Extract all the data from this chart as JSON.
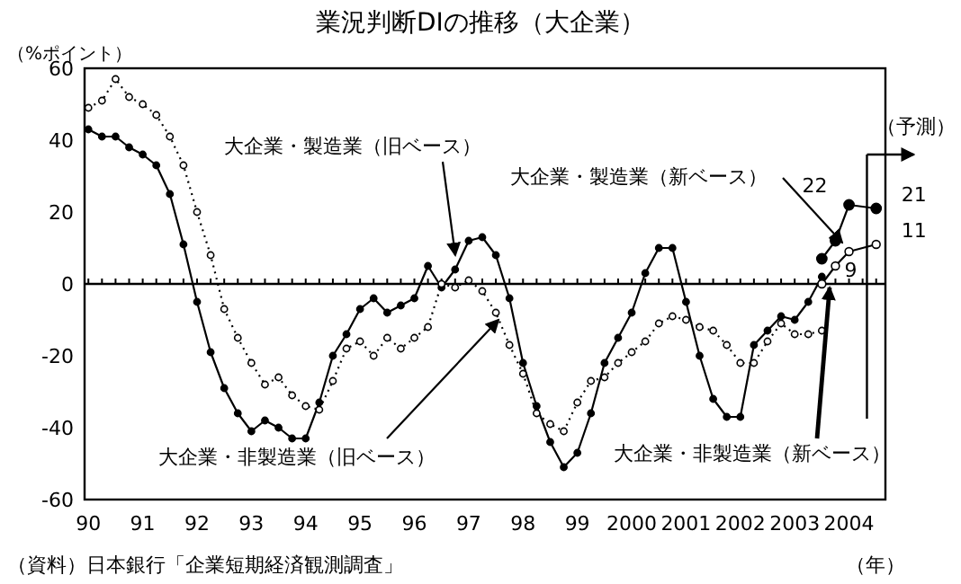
{
  "chart_data": {
    "type": "line",
    "title": "業況判断DIの推移（大企業）",
    "ylabel": "（%ポイント）",
    "xlabel": "（年）",
    "annotations": [
      "（資料）日本銀行「企業短期経済観測調査」"
    ],
    "xlim": [
      1989.93,
      2004.67
    ],
    "ylim": [
      -60,
      60
    ],
    "xticks": [
      {
        "value": 1990,
        "label": "90"
      },
      {
        "value": 1991,
        "label": "91"
      },
      {
        "value": 1992,
        "label": "92"
      },
      {
        "value": 1993,
        "label": "93"
      },
      {
        "value": 1994,
        "label": "94"
      },
      {
        "value": 1995,
        "label": "95"
      },
      {
        "value": 1996,
        "label": "96"
      },
      {
        "value": 1997,
        "label": "97"
      },
      {
        "value": 1998,
        "label": "98"
      },
      {
        "value": 1999,
        "label": "99"
      },
      2000,
      2001,
      2002,
      2003,
      2004
    ],
    "yticks": [
      60,
      40,
      20,
      0,
      -20,
      -40,
      -60
    ],
    "legend": false,
    "grid": false,
    "ref_lines": [
      {
        "axis": "y",
        "value": 0
      },
      {
        "axis": "x",
        "value": 2004.33,
        "label": "（予測）"
      }
    ],
    "series": [
      {
        "name": "大企業・製造業（旧ベース）",
        "color": "#000000",
        "marker": "circle",
        "line_style": "solid",
        "x": [
          1990,
          1990.25,
          1990.5,
          1990.75,
          1991,
          1991.25,
          1991.5,
          1991.75,
          1992,
          1992.25,
          1992.5,
          1992.75,
          1993,
          1993.25,
          1993.5,
          1993.75,
          1994,
          1994.25,
          1994.5,
          1994.75,
          1995,
          1995.25,
          1995.5,
          1995.75,
          1996,
          1996.25,
          1996.5,
          1996.75,
          1997,
          1997.25,
          1997.5,
          1997.75,
          1998,
          1998.25,
          1998.5,
          1998.75,
          1999,
          1999.25,
          1999.5,
          1999.75,
          2000,
          2000.25,
          2000.5,
          2000.75,
          2001,
          2001.25,
          2001.5,
          2001.75,
          2002,
          2002.25,
          2002.5,
          2002.75,
          2003,
          2003.25,
          2003.5
        ],
        "values": [
          43,
          41,
          41,
          38,
          36,
          33,
          25,
          11,
          -5,
          -19,
          -29,
          -36,
          -41,
          -38,
          -40,
          -43,
          -43,
          -33,
          -20,
          -14,
          -7,
          -4,
          -8,
          -6,
          -4,
          5,
          -1,
          4,
          12,
          13,
          8,
          -4,
          -22,
          -34,
          -44,
          -51,
          -47,
          -36,
          -22,
          -15,
          -8,
          3,
          10,
          10,
          -5,
          -20,
          -32,
          -37,
          -37,
          -17,
          -13,
          -9,
          -10,
          -5,
          2
        ]
      },
      {
        "name": "大企業・非製造業（旧ベース）",
        "color": "#000000",
        "marker": "circle",
        "line_style": "dotted",
        "x": [
          1990,
          1990.25,
          1990.5,
          1990.75,
          1991,
          1991.25,
          1991.5,
          1991.75,
          1992,
          1992.25,
          1992.5,
          1992.75,
          1993,
          1993.25,
          1993.5,
          1993.75,
          1994,
          1994.25,
          1994.5,
          1994.75,
          1995,
          1995.25,
          1995.5,
          1995.75,
          1996,
          1996.25,
          1996.5,
          1996.75,
          1997,
          1997.25,
          1997.5,
          1997.75,
          1998,
          1998.25,
          1998.5,
          1998.75,
          1999,
          1999.25,
          1999.5,
          1999.75,
          2000,
          2000.25,
          2000.5,
          2000.75,
          2001,
          2001.25,
          2001.5,
          2001.75,
          2002,
          2002.25,
          2002.5,
          2002.75,
          2003,
          2003.25,
          2003.5
        ],
        "values": [
          49,
          51,
          57,
          52,
          50,
          47,
          41,
          33,
          20,
          8,
          -7,
          -15,
          -22,
          -28,
          -26,
          -31,
          -34,
          -35,
          -27,
          -18,
          -16,
          -20,
          -15,
          -18,
          -15,
          -12,
          0,
          -1,
          1,
          -2,
          -8,
          -17,
          -25,
          -36,
          -39,
          -41,
          -33,
          -27,
          -26,
          -22,
          -19,
          -16,
          -11,
          -9,
          -10,
          -12,
          -13,
          -17,
          -22,
          -22,
          -16,
          -11,
          -14,
          -14,
          -13
        ]
      },
      {
        "name": "大企業・製造業（新ベース）",
        "color": "#000000",
        "marker": "circle",
        "line_style": "solid",
        "x": [
          2003.5,
          2003.75,
          2004,
          2004.5
        ],
        "values": [
          7,
          12,
          22,
          21
        ],
        "value_labels": [
          null,
          null,
          "22",
          "21"
        ]
      },
      {
        "name": "大企業・非製造業（新ベース）",
        "color": "#000000",
        "marker": "circle",
        "line_style": "solid",
        "x": [
          2003.5,
          2003.75,
          2004,
          2004.5
        ],
        "values": [
          0,
          5,
          9,
          11
        ],
        "value_labels": [
          null,
          null,
          "9",
          "11"
        ]
      }
    ]
  }
}
